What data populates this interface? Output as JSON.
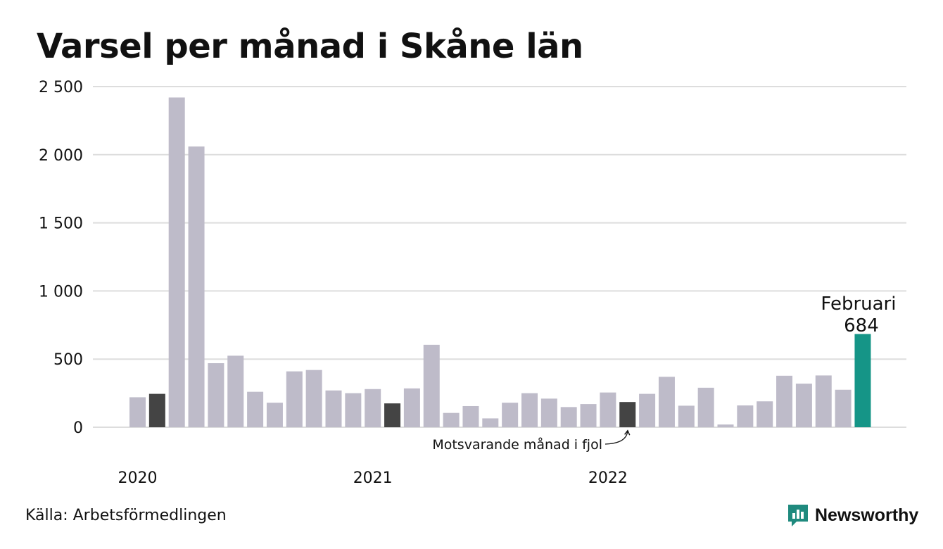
{
  "colors": {
    "bar_default": "#bebbc9",
    "bar_previous_year": "#444444",
    "bar_current": "#159587",
    "grid": "#dddddd",
    "brand": "#1f8a7e"
  },
  "page": {
    "title": "Varsel per månad i Skåne län",
    "source": "Källa: Arbetsförmedlingen",
    "brand_name": "Newsworthy",
    "brand_icon": "newsworthy-logo-icon"
  },
  "chart_data": {
    "type": "bar",
    "title": "Varsel per månad i Skåne län",
    "xlabel": "",
    "ylabel": "",
    "ylim": [
      0,
      2500
    ],
    "grid": true,
    "y_ticks": [
      0,
      500,
      1000,
      1500,
      2000,
      2500
    ],
    "y_tick_labels": [
      "0",
      "500",
      "1 000",
      "1 500",
      "2 000",
      "2 500"
    ],
    "x_tick_labels": [
      {
        "label": "2020",
        "index": 0
      },
      {
        "label": "2021",
        "index": 12
      },
      {
        "label": "2022",
        "index": 24
      }
    ],
    "categories": [
      "2020-01",
      "2020-02",
      "2020-03",
      "2020-04",
      "2020-05",
      "2020-06",
      "2020-07",
      "2020-08",
      "2020-09",
      "2020-10",
      "2020-11",
      "2020-12",
      "2021-01",
      "2021-02",
      "2021-03",
      "2021-04",
      "2021-05",
      "2021-06",
      "2021-07",
      "2021-08",
      "2021-09",
      "2021-10",
      "2021-11",
      "2021-12",
      "2022-01",
      "2022-02",
      "2022-03",
      "2022-04",
      "2022-05",
      "2022-06",
      "2022-07",
      "2022-08",
      "2022-09",
      "2022-10",
      "2022-11",
      "2022-12",
      "2023-01",
      "2023-02"
    ],
    "values": [
      220,
      245,
      2420,
      2060,
      470,
      525,
      260,
      180,
      410,
      420,
      270,
      250,
      280,
      175,
      285,
      605,
      105,
      155,
      65,
      180,
      250,
      210,
      148,
      170,
      255,
      185,
      245,
      370,
      158,
      290,
      20,
      160,
      190,
      378,
      320,
      380,
      275,
      684
    ],
    "highlight_previous_year_indices": [
      1,
      13,
      25
    ],
    "highlight_current_index": 37,
    "annotations": {
      "current_month_label": "Februari",
      "current_value_label": "684",
      "previous_year_label": "Motsvarande månad i fjol"
    }
  }
}
